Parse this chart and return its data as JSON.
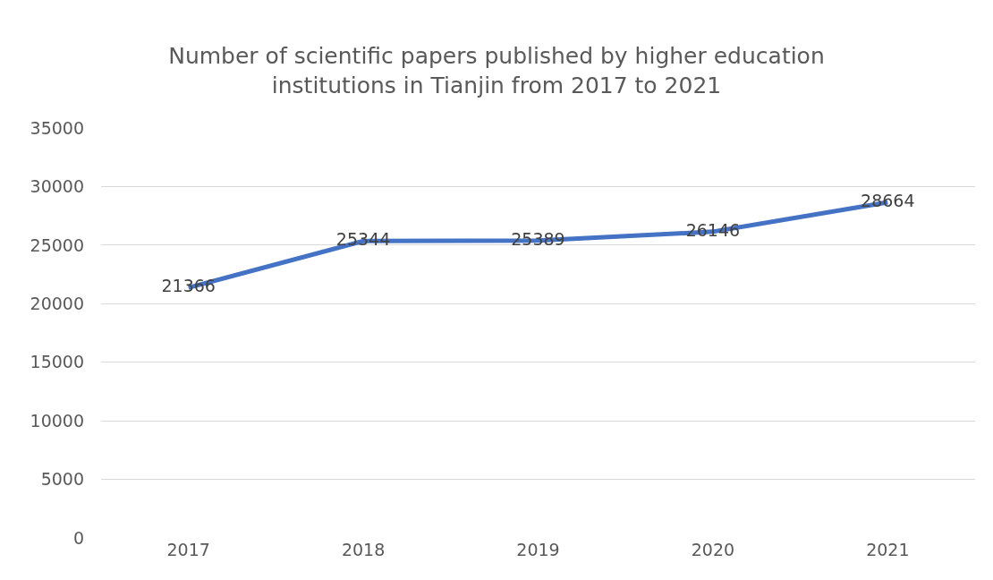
{
  "chart_data": {
    "type": "line",
    "title": "Number of scientific papers published by higher education\ninstitutions in Tianjin from 2017 to 2021",
    "categories": [
      "2017",
      "2018",
      "2019",
      "2020",
      "2021"
    ],
    "series": [
      {
        "color": "#4472c4",
        "values": [
          21366,
          25344,
          25389,
          26146,
          28664
        ]
      }
    ],
    "ylim": [
      0,
      35000
    ],
    "yticks": [
      0,
      5000,
      10000,
      15000,
      20000,
      25000,
      30000,
      35000
    ],
    "grid": "y",
    "data_labels": true,
    "line_style": "solid"
  }
}
